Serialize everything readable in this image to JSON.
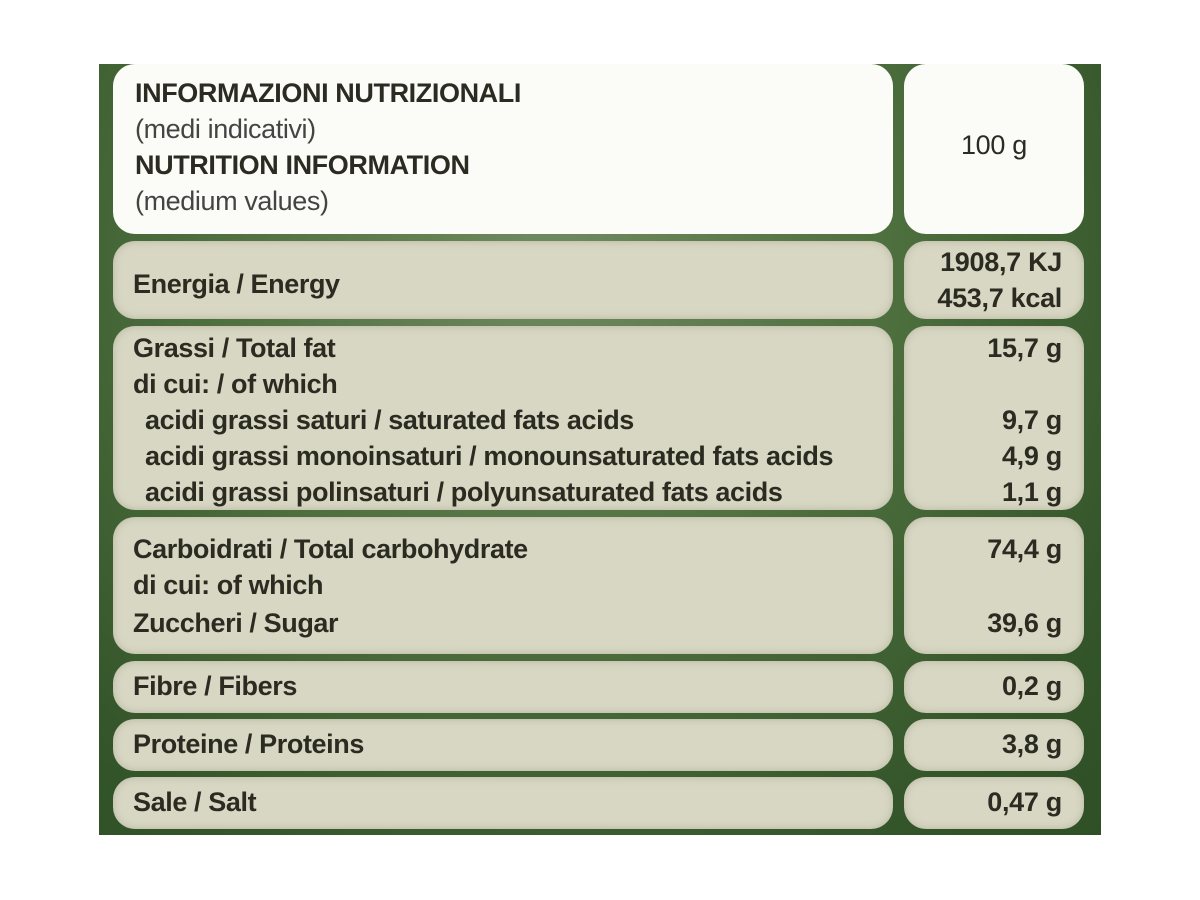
{
  "header": {
    "title_it": "INFORMAZIONI NUTRIZIONALI",
    "subtitle_it": "(medi indicativi)",
    "title_en": "NUTRITION INFORMATION",
    "subtitle_en": "(medium values)",
    "per": "100 g"
  },
  "energy": {
    "label": "Energia / Energy",
    "kj": "1908,7 KJ",
    "kcal": "453,7 kcal"
  },
  "fat": {
    "label": "Grassi / Total fat",
    "value": "15,7 g",
    "of_which": "di cui: / of which",
    "saturated": {
      "label": "acidi grassi saturi / saturated fats acids",
      "value": "9,7 g"
    },
    "mono": {
      "label": "acidi grassi monoinsaturi / monounsaturated fats acids",
      "value": "4,9 g"
    },
    "poly": {
      "label": "acidi grassi polinsaturi / polyunsaturated fats acids",
      "value": "1,1 g"
    }
  },
  "carbs": {
    "label": "Carboidrati / Total carbohydrate",
    "value": "74,4 g",
    "of_which": "di cui: of which",
    "sugar": {
      "label": "Zuccheri / Sugar",
      "value": "39,6 g"
    }
  },
  "fibre": {
    "label": "Fibre / Fibers",
    "value": "0,2 g"
  },
  "protein": {
    "label": "Proteine / Proteins",
    "value": "3,8 g"
  },
  "salt": {
    "label": "Sale / Salt",
    "value": "0,47 g"
  }
}
